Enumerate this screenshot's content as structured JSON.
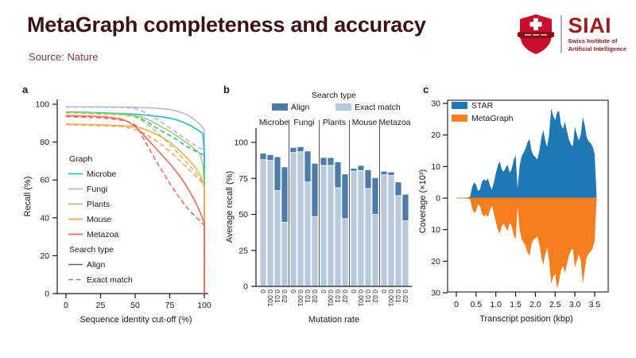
{
  "header": {
    "title": "MetaGraph completeness and accuracy",
    "source_label": "Source:",
    "source_value": "Nature",
    "logo": {
      "acronym": "SIAI",
      "subtitle_line1": "Swiss Institute of",
      "subtitle_line2": "Artificial Intelligence"
    }
  },
  "colors": {
    "title": "#3c1216",
    "source": "#7a3a42",
    "logo_red": "#c8102e",
    "logo_banner_red": "#8a0f1e",
    "logo_dark_red": "#9e1c21",
    "axis": "#1a1a1a",
    "separator_gray": "#555555"
  },
  "chart_data": [
    {
      "panel": "a",
      "type": "line",
      "xlabel": "Sequence identity cut-off (%)",
      "ylabel": "Recall (%)",
      "xlim": [
        0,
        100
      ],
      "ylim": [
        0,
        100
      ],
      "xticks": [
        0,
        25,
        50,
        75,
        100
      ],
      "yticks": [
        0,
        20,
        40,
        60,
        80,
        100
      ],
      "legend": {
        "graph_title": "Graph",
        "search_title": "Search type",
        "align_label": "Align",
        "exact_label": "Exact match"
      },
      "legend_order": [
        "Microbe",
        "Fungi",
        "Plants",
        "Mouse",
        "Metazoa"
      ],
      "series": [
        {
          "name": "Fungi",
          "color": "#b9b5d8",
          "align": [
            [
              0,
              98.6
            ],
            [
              20,
              98.6
            ],
            [
              40,
              98.5
            ],
            [
              50,
              98.4
            ],
            [
              60,
              98.1
            ],
            [
              70,
              97.6
            ],
            [
              75,
              97.2
            ],
            [
              80,
              96.4
            ],
            [
              85,
              95.2
            ],
            [
              90,
              93.4
            ],
            [
              95,
              90.6
            ],
            [
              98,
              88.6
            ],
            [
              100,
              86.5
            ],
            [
              100,
              0
            ]
          ],
          "exact": [
            [
              0,
              98.5
            ],
            [
              20,
              98.5
            ],
            [
              40,
              98.3
            ],
            [
              50,
              97.8
            ],
            [
              55,
              96.4
            ],
            [
              60,
              94.4
            ],
            [
              65,
              92.4
            ],
            [
              70,
              90
            ],
            [
              75,
              87.6
            ],
            [
              80,
              85
            ],
            [
              85,
              82.4
            ],
            [
              90,
              79.8
            ],
            [
              95,
              77.4
            ],
            [
              100,
              75.5
            ],
            [
              100,
              0
            ]
          ]
        },
        {
          "name": "Microbe",
          "color": "#2eb5c6",
          "align": [
            [
              0,
              96
            ],
            [
              20,
              95.6
            ],
            [
              40,
              95.1
            ],
            [
              50,
              94.7
            ],
            [
              60,
              94.1
            ],
            [
              70,
              93.3
            ],
            [
              75,
              92.7
            ],
            [
              80,
              91.7
            ],
            [
              85,
              90.4
            ],
            [
              90,
              88.7
            ],
            [
              95,
              86.5
            ],
            [
              99,
              84.5
            ],
            [
              100,
              73
            ],
            [
              100,
              0
            ]
          ],
          "exact": [
            [
              0,
              95.6
            ],
            [
              20,
              95.2
            ],
            [
              40,
              94.6
            ],
            [
              50,
              93.5
            ],
            [
              55,
              92.1
            ],
            [
              60,
              90.1
            ],
            [
              65,
              87.7
            ],
            [
              70,
              85.5
            ],
            [
              75,
              83.5
            ],
            [
              80,
              81.3
            ],
            [
              85,
              78.7
            ],
            [
              90,
              76.7
            ],
            [
              95,
              74.7
            ],
            [
              100,
              73
            ],
            [
              100,
              0
            ]
          ]
        },
        {
          "name": "Plants",
          "color": "#a8cd68",
          "align": [
            [
              0,
              95.8
            ],
            [
              20,
              95.3
            ],
            [
              40,
              94.7
            ],
            [
              50,
              93.9
            ],
            [
              55,
              93.1
            ],
            [
              60,
              91.7
            ],
            [
              65,
              89.7
            ],
            [
              70,
              87.7
            ],
            [
              75,
              85.7
            ],
            [
              80,
              83.3
            ],
            [
              85,
              80.7
            ],
            [
              90,
              78.1
            ],
            [
              95,
              75.3
            ],
            [
              97,
              73.5
            ],
            [
              99,
              68
            ],
            [
              100,
              55
            ],
            [
              100,
              0
            ]
          ],
          "exact": [
            [
              0,
              95.4
            ],
            [
              20,
              95
            ],
            [
              40,
              94.4
            ],
            [
              50,
              93.3
            ],
            [
              55,
              91.3
            ],
            [
              60,
              88.7
            ],
            [
              65,
              85.7
            ],
            [
              70,
              82.3
            ],
            [
              75,
              78.7
            ],
            [
              80,
              75.1
            ],
            [
              85,
              71.1
            ],
            [
              90,
              67.1
            ],
            [
              95,
              62.7
            ],
            [
              98,
              59.9
            ],
            [
              100,
              57
            ],
            [
              100,
              0
            ]
          ]
        },
        {
          "name": "Mouse",
          "color": "#f4a952",
          "align": [
            [
              0,
              89.6
            ],
            [
              20,
              89.2
            ],
            [
              40,
              88.7
            ],
            [
              50,
              88.1
            ],
            [
              55,
              87.3
            ],
            [
              60,
              85.9
            ],
            [
              65,
              84.3
            ],
            [
              70,
              82.3
            ],
            [
              75,
              79.9
            ],
            [
              80,
              76.9
            ],
            [
              85,
              73.5
            ],
            [
              90,
              69.7
            ],
            [
              95,
              65.1
            ],
            [
              97,
              62.5
            ],
            [
              99,
              58.5
            ],
            [
              100,
              55.5
            ],
            [
              100,
              0
            ]
          ],
          "exact": [
            [
              0,
              89.2
            ],
            [
              20,
              88.8
            ],
            [
              40,
              88.2
            ],
            [
              45,
              87.6
            ],
            [
              50,
              86.7
            ],
            [
              55,
              85.1
            ],
            [
              60,
              83.1
            ],
            [
              65,
              80.7
            ],
            [
              70,
              78.1
            ],
            [
              75,
              75.1
            ],
            [
              80,
              71.7
            ],
            [
              85,
              68.3
            ],
            [
              90,
              64.7
            ],
            [
              95,
              61.1
            ],
            [
              100,
              57.5
            ],
            [
              100,
              0
            ]
          ]
        },
        {
          "name": "Metazoa",
          "color": "#ee6a5a",
          "align": [
            [
              0,
              94
            ],
            [
              20,
              93.7
            ],
            [
              30,
              93.2
            ],
            [
              40,
              92.2
            ],
            [
              45,
              90.7
            ],
            [
              50,
              88.2
            ],
            [
              55,
              84.7
            ],
            [
              60,
              80.7
            ],
            [
              65,
              76.7
            ],
            [
              70,
              72.7
            ],
            [
              75,
              68.7
            ],
            [
              80,
              64.2
            ],
            [
              85,
              59.2
            ],
            [
              90,
              53.2
            ],
            [
              95,
              46.2
            ],
            [
              98,
              41.2
            ],
            [
              100,
              37
            ],
            [
              100,
              0
            ]
          ],
          "exact": [
            [
              0,
              93.4
            ],
            [
              20,
              93
            ],
            [
              30,
              92.5
            ],
            [
              40,
              91.6
            ],
            [
              45,
              90.7
            ],
            [
              50,
              89.1
            ],
            [
              52,
              87.3
            ],
            [
              55,
              83.3
            ],
            [
              60,
              76.7
            ],
            [
              65,
              70.2
            ],
            [
              70,
              64.2
            ],
            [
              75,
              58.2
            ],
            [
              80,
              52.7
            ],
            [
              85,
              47.7
            ],
            [
              90,
              43.2
            ],
            [
              95,
              39.7
            ],
            [
              100,
              36
            ],
            [
              100,
              0
            ]
          ]
        }
      ]
    },
    {
      "panel": "b",
      "type": "bar",
      "legend_title": "Search type",
      "align_label": "Align",
      "exact_label": "Exact match",
      "align_color": "#4b7ba6",
      "exact_color": "#b8c9de",
      "groups": [
        "Microbe",
        "Fungi",
        "Plants",
        "Mouse",
        "Metazoa"
      ],
      "mutation_rates": [
        "0",
        "0.001",
        "0.01",
        "0.02"
      ],
      "align_values": [
        [
          92.5,
          91.5,
          90,
          83
        ],
        [
          96.5,
          97,
          94,
          85.5
        ],
        [
          89.5,
          89.5,
          86.5,
          78
        ],
        [
          82,
          84,
          81,
          75.5
        ],
        [
          80,
          79.5,
          72.5,
          64
        ]
      ],
      "exact_values": [
        [
          88,
          87.5,
          66.5,
          44.5
        ],
        [
          93,
          93.5,
          72.5,
          48.5
        ],
        [
          84,
          84,
          68.5,
          47
        ],
        [
          80,
          80.5,
          68,
          50
        ],
        [
          77.5,
          77,
          63,
          45.5
        ]
      ],
      "xlabel": "Mutation rate",
      "ylabel": "Average recall (%)",
      "ylim": [
        0,
        100
      ],
      "yticks": [
        0,
        25,
        50,
        75,
        100
      ]
    },
    {
      "panel": "c",
      "type": "area",
      "legend": [
        {
          "label": "STAR",
          "color": "#1f77b4"
        },
        {
          "label": "MetaGraph",
          "color": "#f57f20"
        }
      ],
      "xlabel": "Transcript position (kbp)",
      "ylabel": "Coverage (×10³)",
      "xticks": [
        "0",
        "0.5",
        "1.0",
        "1.5",
        "2.0",
        "2.5",
        "3.0",
        "3.5"
      ],
      "yticks_abs": [
        30,
        20,
        10,
        0,
        10,
        20,
        30
      ],
      "ylim": [
        -30,
        30
      ],
      "x_start": 0,
      "x_step": 0.05,
      "star_values": [
        0,
        0.1,
        0.1,
        0.1,
        0.15,
        0.15,
        0.2,
        0.5,
        3.5,
        5,
        4.2,
        2.2,
        2.8,
        5.2,
        6,
        5.4,
        6.2,
        4,
        2.6,
        5,
        7.8,
        10.4,
        11.6,
        9,
        8.4,
        9.6,
        10.6,
        8,
        9.2,
        12,
        13.6,
        3,
        10,
        13.2,
        14.4,
        15.6,
        17.6,
        18.8,
        15.2,
        13.6,
        13,
        12.2,
        15,
        19,
        21.6,
        18.2,
        16.2,
        20.4,
        28.4,
        26.2,
        24.6,
        27.2,
        27.6,
        23.2,
        22,
        24.2,
        21.2,
        18.6,
        17,
        16.4,
        22.6,
        20.2,
        18.2,
        20.2,
        25.6,
        23,
        19.2,
        18,
        17.4,
        16.2,
        14,
        0
      ],
      "metagraph_values": [
        0,
        0.1,
        0.1,
        0.1,
        0.15,
        0.15,
        0.2,
        0.5,
        3.2,
        4.8,
        4,
        2,
        2.6,
        5,
        5.8,
        5.2,
        6,
        3.8,
        2.4,
        4.8,
        7.6,
        10,
        11.2,
        8.8,
        8.2,
        9.4,
        10.4,
        7.8,
        9,
        11.8,
        13.2,
        2.8,
        9.8,
        13,
        14,
        15.2,
        17.2,
        18.4,
        14.8,
        13.2,
        12.8,
        12,
        14.6,
        18.6,
        21.2,
        17.8,
        15.8,
        20,
        27,
        25,
        24,
        28.6,
        26.4,
        22.8,
        21.6,
        23.8,
        20.8,
        18.2,
        16.6,
        16,
        22,
        19.8,
        17.8,
        19.8,
        27.2,
        22.6,
        18.8,
        17.6,
        17,
        15.8,
        13.6,
        0
      ]
    }
  ]
}
